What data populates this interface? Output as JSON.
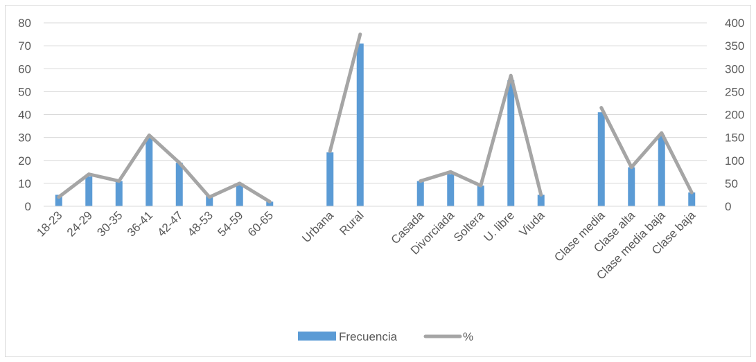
{
  "chart_data": {
    "type": "bar",
    "categories": [
      "18-23",
      "24-29",
      "30-35",
      "36-41",
      "42-47",
      "48-53",
      "54-59",
      "60-65",
      "",
      "Urbana",
      "Rural",
      "",
      "Casada",
      "Divorciada",
      "Soltera",
      "U. libre",
      "Viuda",
      "",
      "Clase media",
      "Clase alta",
      "Clase media baja",
      "Clase baja"
    ],
    "series": [
      {
        "name": "Frecuencia",
        "type": "bar",
        "axis": "left",
        "color": "#5b9bd5",
        "values": [
          5,
          13,
          11,
          30,
          19,
          4.5,
          9.5,
          2,
          null,
          23.5,
          71,
          null,
          11,
          14,
          9,
          55,
          5,
          null,
          41,
          17,
          31,
          6
        ]
      },
      {
        "name": "%",
        "type": "line",
        "axis": "right",
        "color": "#a5a5a5",
        "values": [
          20,
          70,
          55,
          155,
          95,
          20,
          50,
          10,
          null,
          120,
          375,
          null,
          55,
          75,
          45,
          285,
          25,
          null,
          215,
          85,
          160,
          30
        ]
      }
    ],
    "y_left": {
      "ticks": [
        "0",
        "10",
        "20",
        "30",
        "40",
        "50",
        "60",
        "70",
        "80"
      ],
      "ylim": [
        0,
        80
      ]
    },
    "y_right": {
      "ticks": [
        "0",
        "50",
        "100",
        "150",
        "200",
        "250",
        "300",
        "350",
        "400"
      ],
      "ylim": [
        0,
        400
      ]
    },
    "grid": true,
    "legend_position": "bottom"
  }
}
